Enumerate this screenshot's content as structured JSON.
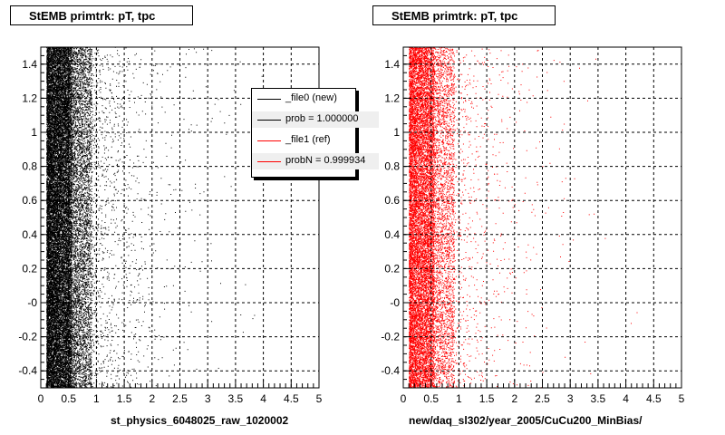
{
  "footer": "",
  "chart_data": [
    {
      "type": "scatter",
      "title": "StEMB primtrk: pT, tpc",
      "xlabel": "st_physics_6048025_raw_1020002",
      "ylabel": "",
      "xlim": [
        0,
        5
      ],
      "ylim": [
        -0.5,
        1.5
      ],
      "x_ticks": [
        "0",
        "0.5",
        "1",
        "1.5",
        "2",
        "2.5",
        "3",
        "3.5",
        "4",
        "4.5",
        "5"
      ],
      "y_ticks": [
        "-0.4",
        "-0.2",
        "-0",
        "0.2",
        "0.4",
        "0.6",
        "0.8",
        "1",
        "1.2",
        "1.4"
      ],
      "grid": true,
      "point_color": "#000000",
      "distribution": {
        "x_peak": 0.3,
        "x_min": 0.1,
        "x_range_dense": [
          0.1,
          1.0
        ],
        "x_max_sparse": 4.9,
        "y_uniform": [
          -0.5,
          1.5
        ],
        "approx_points": 26000
      },
      "legend": {
        "placement": "top-right",
        "entries": [
          {
            "label": "_file0 (new)",
            "color": "#000000"
          },
          {
            "label": "prob = 1.000000",
            "color": "#000000"
          },
          {
            "label": "_file1 (ref)",
            "color": "#ff0000"
          },
          {
            "label": "probN = 0.999934",
            "color": "#ff0000"
          }
        ]
      }
    },
    {
      "type": "scatter",
      "title": "StEMB primtrk: pT, tpc",
      "xlabel": "new/daq_sl302/year_2005/CuCu200_MinBias/",
      "ylabel": "",
      "xlim": [
        0,
        5
      ],
      "ylim": [
        -0.5,
        1.5
      ],
      "x_ticks": [
        "0",
        "0.5",
        "1",
        "1.5",
        "2",
        "2.5",
        "3",
        "3.5",
        "4",
        "4.5",
        "5"
      ],
      "y_ticks": [
        "-0.4",
        "-0.2",
        "-0",
        "0.2",
        "0.4",
        "0.6",
        "0.8",
        "1",
        "1.2",
        "1.4"
      ],
      "grid": true,
      "point_color": "#ff0000",
      "distribution": {
        "x_peak": 0.3,
        "x_min": 0.1,
        "x_range_dense": [
          0.1,
          1.0
        ],
        "x_max_sparse": 4.9,
        "y_uniform": [
          -0.5,
          1.5
        ],
        "approx_points": 16000
      }
    }
  ]
}
